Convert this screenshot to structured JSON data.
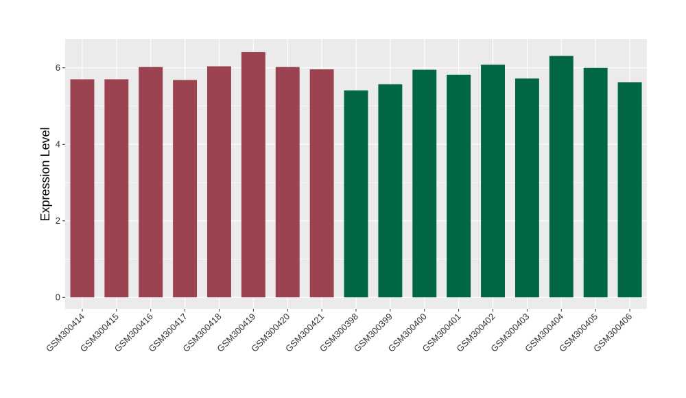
{
  "chart_data": {
    "type": "bar",
    "title": "",
    "xlabel": "",
    "ylabel": "Expression Level",
    "ylim": [
      -0.3,
      6.75
    ],
    "yticks": [
      0,
      2,
      4,
      6
    ],
    "grid": true,
    "legend": "none",
    "colors": {
      "group_a": "#9b4350",
      "group_b": "#006644",
      "panel": "#ebebeb",
      "gridline": "#ffffff"
    },
    "categories": [
      "GSM300414",
      "GSM300415",
      "GSM300416",
      "GSM300417",
      "GSM300418",
      "GSM300419",
      "GSM300420",
      "GSM300421",
      "GSM300398",
      "GSM300399",
      "GSM300400",
      "GSM300401",
      "GSM300402",
      "GSM300403",
      "GSM300404",
      "GSM300405",
      "GSM300406"
    ],
    "values": [
      5.7,
      5.7,
      6.02,
      5.68,
      6.04,
      6.41,
      6.02,
      5.96,
      5.41,
      5.57,
      5.95,
      5.82,
      6.08,
      5.72,
      6.31,
      6.0,
      5.62
    ],
    "bar_groups": [
      "group_a",
      "group_a",
      "group_a",
      "group_a",
      "group_a",
      "group_a",
      "group_a",
      "group_a",
      "group_b",
      "group_b",
      "group_b",
      "group_b",
      "group_b",
      "group_b",
      "group_b",
      "group_b",
      "group_b"
    ]
  }
}
